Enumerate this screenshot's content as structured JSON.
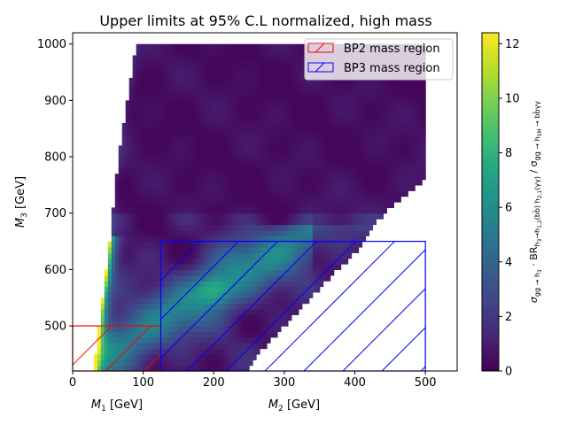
{
  "chart_data": {
    "type": "heatmap",
    "title": "Upper limits at 95% C.L normalized, high mass",
    "xlabel_left": "M_1 [GeV]",
    "xlabel_right": "M_2 [GeV]",
    "ylabel": "M_3 [GeV]",
    "xlim": [
      0,
      545
    ],
    "ylim": [
      420,
      1020
    ],
    "x_ticks": [
      0,
      100,
      200,
      300,
      400,
      500
    ],
    "y_ticks": [
      500,
      600,
      700,
      800,
      900,
      1000
    ],
    "colorbar": {
      "range": [
        0,
        12.4
      ],
      "ticks": [
        0,
        2,
        4,
        6,
        8,
        10,
        12
      ],
      "colormap": "viridis",
      "label": "σ_gg → h_3 · BR_{h_3 → h_{1,2}(bb̄) h_{2,1}(γγ)} / σ_{gg → h_SM → bb̄γγ}"
    },
    "regions": [
      {
        "name": "BP2 mass region",
        "x": [
          0,
          125
        ],
        "y": [
          420,
          500
        ],
        "color": "#ff0000"
      },
      {
        "name": "BP3 mass region",
        "x": [
          125,
          500
        ],
        "y": [
          420,
          650
        ],
        "color": "#0000ff"
      }
    ],
    "heatmap_domain": {
      "x": [
        30,
        500
      ],
      "y": [
        420,
        1000
      ],
      "lower_left_boundary": [
        [
          30,
          420
        ],
        [
          38,
          500
        ],
        [
          48,
          600
        ],
        [
          55,
          680
        ],
        [
          62,
          760
        ],
        [
          72,
          860
        ],
        [
          90,
          1000
        ]
      ],
      "upper_right_boundary": [
        [
          500,
          760
        ],
        [
          460,
          720
        ],
        [
          425,
          680
        ],
        [
          400,
          630
        ],
        [
          360,
          580
        ],
        [
          330,
          540
        ],
        [
          300,
          500
        ],
        [
          270,
          460
        ],
        [
          245,
          420
        ]
      ]
    },
    "grid": false,
    "legend_placement": "top-right"
  }
}
